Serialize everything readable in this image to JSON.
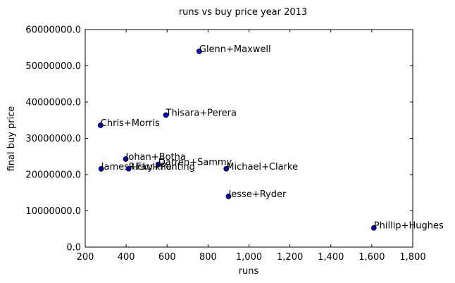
{
  "chart_data": {
    "type": "scatter",
    "title": "runs vs buy price year 2013",
    "xlabel": "runs",
    "ylabel": "final buy price",
    "xlim": [
      200,
      1800
    ],
    "ylim": [
      0,
      60000000
    ],
    "x_ticks": [
      200,
      400,
      600,
      800,
      1000,
      1200,
      1400,
      1600,
      1800
    ],
    "x_tick_labels": [
      "200",
      "400",
      "600",
      "800",
      "1,000",
      "1,200",
      "1,400",
      "1,600",
      "1,800"
    ],
    "y_ticks": [
      0,
      10000000,
      20000000,
      30000000,
      40000000,
      50000000,
      60000000
    ],
    "y_tick_labels": [
      "0.0",
      "10000000.0",
      "20000000.0",
      "30000000.0",
      "40000000.0",
      "50000000.0",
      "60000000.0"
    ],
    "grid": false,
    "marker_color": "#0000cc",
    "points": [
      {
        "label": "Glenn+Maxwell",
        "x": 757,
        "y": 54000000
      },
      {
        "label": "Thisara+Perera",
        "x": 594,
        "y": 36400000
      },
      {
        "label": "Chris+Morris",
        "x": 275,
        "y": 33600000
      },
      {
        "label": "Johan+Botha",
        "x": 398,
        "y": 24300000
      },
      {
        "label": "Darren+Sammy",
        "x": 557,
        "y": 22800000
      },
      {
        "label": "James+Faulkner",
        "x": 278,
        "y": 21600000
      },
      {
        "label": "Ricky+Ponting",
        "x": 412,
        "y": 21600000
      },
      {
        "label": "Michael+Clarke",
        "x": 889,
        "y": 21600000
      },
      {
        "label": "Jesse+Ryder",
        "x": 900,
        "y": 14000000
      },
      {
        "label": "Phillip+Hughes",
        "x": 1610,
        "y": 5300000
      }
    ]
  }
}
